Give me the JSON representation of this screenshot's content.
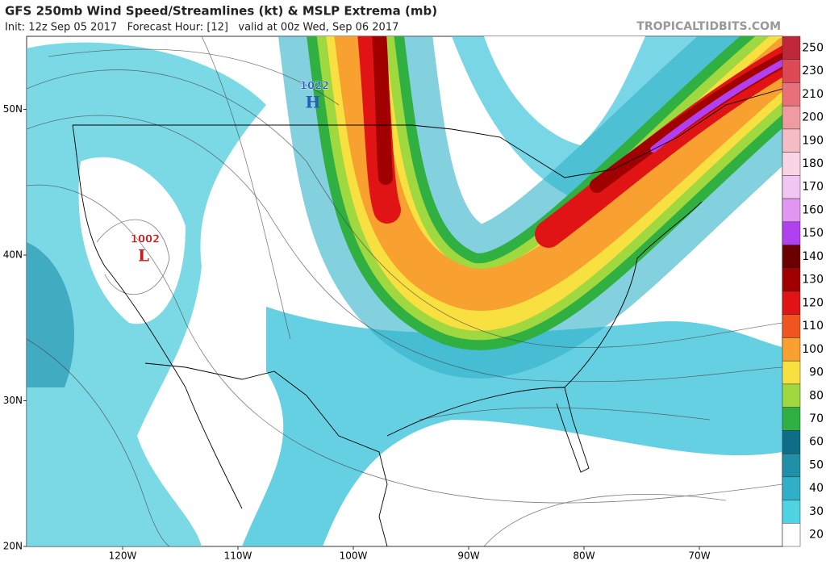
{
  "header": {
    "title": "GFS 250mb Wind Speed/Streamlines (kt) & MSLP Extrema (mb)",
    "subtitle": "Init: 12z Sep 05 2017   Forecast Hour: [12]   valid at 00z Wed, Sep 06 2017",
    "credit": "TROPICALTIDBITS.COM"
  },
  "map": {
    "lat_labels": [
      {
        "value": 50,
        "label": "50N"
      },
      {
        "value": 40,
        "label": "40N"
      },
      {
        "value": 30,
        "label": "30N"
      },
      {
        "value": 20,
        "label": "20N"
      }
    ],
    "lon_labels": [
      {
        "value": -120,
        "label": "120W"
      },
      {
        "value": -110,
        "label": "110W"
      },
      {
        "value": -100,
        "label": "100W"
      },
      {
        "value": -90,
        "label": "90W"
      },
      {
        "value": -80,
        "label": "80W"
      },
      {
        "value": -70,
        "label": "70W"
      }
    ],
    "pressure_centers": [
      {
        "value": "1022",
        "letter": "H",
        "color": "#2a5cc0"
      },
      {
        "value": "1002",
        "letter": "L",
        "color": "#d01818"
      }
    ]
  },
  "colorbar": {
    "levels": [
      250,
      230,
      210,
      200,
      190,
      180,
      170,
      160,
      150,
      140,
      130,
      120,
      110,
      100,
      90,
      80,
      70,
      60,
      50,
      40,
      30,
      20
    ],
    "colors": [
      "#c0283a",
      "#dc4a55",
      "#e8707a",
      "#f09aa2",
      "#f5bcc6",
      "#f8d4e4",
      "#f2c6f2",
      "#e296f2",
      "#b040f0",
      "#6a0000",
      "#a00000",
      "#e01414",
      "#f05420",
      "#f8a030",
      "#f8e040",
      "#a0d840",
      "#30b040",
      "#0e6e88",
      "#2090a8",
      "#30b0c8",
      "#50d4e4",
      "#ffffff"
    ]
  }
}
